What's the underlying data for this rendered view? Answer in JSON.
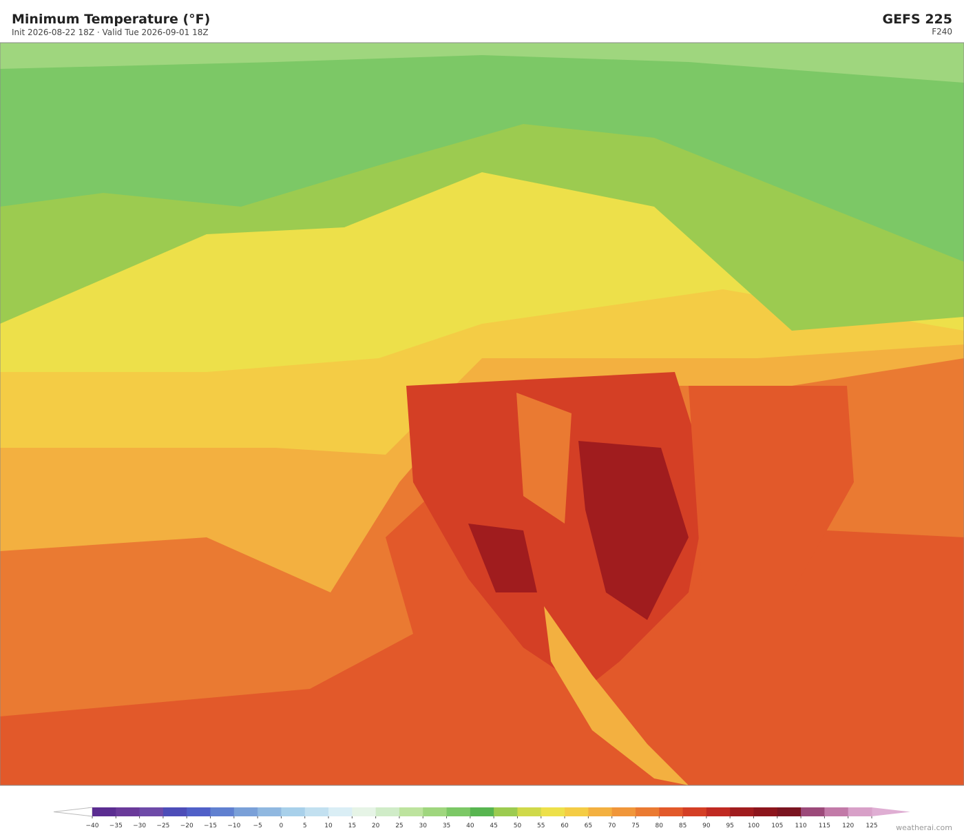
{
  "header": {
    "title": "Minimum Temperature  (°F)",
    "subtitle": "Init 2026-08-22 18Z  ·  Valid Tue 2026-09-01 18Z",
    "model": "GEFS  225",
    "forecast_hour": "F240"
  },
  "colorbar": {
    "ticks": [
      {
        "value": -40,
        "label": "−40"
      },
      {
        "value": -35,
        "label": "−35"
      },
      {
        "value": -30,
        "label": "−30"
      },
      {
        "value": -25,
        "label": "−25"
      },
      {
        "value": -20,
        "label": "−20"
      },
      {
        "value": -15,
        "label": "−15"
      },
      {
        "value": -10,
        "label": "−10"
      },
      {
        "value": -5,
        "label": "−5"
      },
      0,
      5,
      10,
      15,
      20,
      25,
      30,
      35,
      40,
      45,
      50,
      55,
      60,
      65,
      70,
      75,
      80,
      85,
      90,
      95,
      100,
      105,
      110,
      115,
      120,
      125
    ],
    "colors": [
      "#5b2d91",
      "#6a3a9a",
      "#6e4aa8",
      "#4d4db8",
      "#5060c8",
      "#6080d0",
      "#7aa0d8",
      "#90b8e0",
      "#a8d0ea",
      "#c2e0f0",
      "#daeef5",
      "#e6f4e6",
      "#d0ecc8",
      "#bde39e",
      "#9fd67e",
      "#7cc866",
      "#58b550",
      "#9ccb50",
      "#cfd94a",
      "#ede04a",
      "#f4cc45",
      "#f3b040",
      "#f0963a",
      "#ea7a32",
      "#e2592a",
      "#d43f25",
      "#c02a22",
      "#a01c1e",
      "#8c151c",
      "#7a1420",
      "#9c4a7a",
      "#c27aa8",
      "#d8a0c8"
    ],
    "under_color": "#ffffff",
    "over_color": "#dfaed3"
  },
  "footer": {
    "credit": "weatherai.com"
  }
}
